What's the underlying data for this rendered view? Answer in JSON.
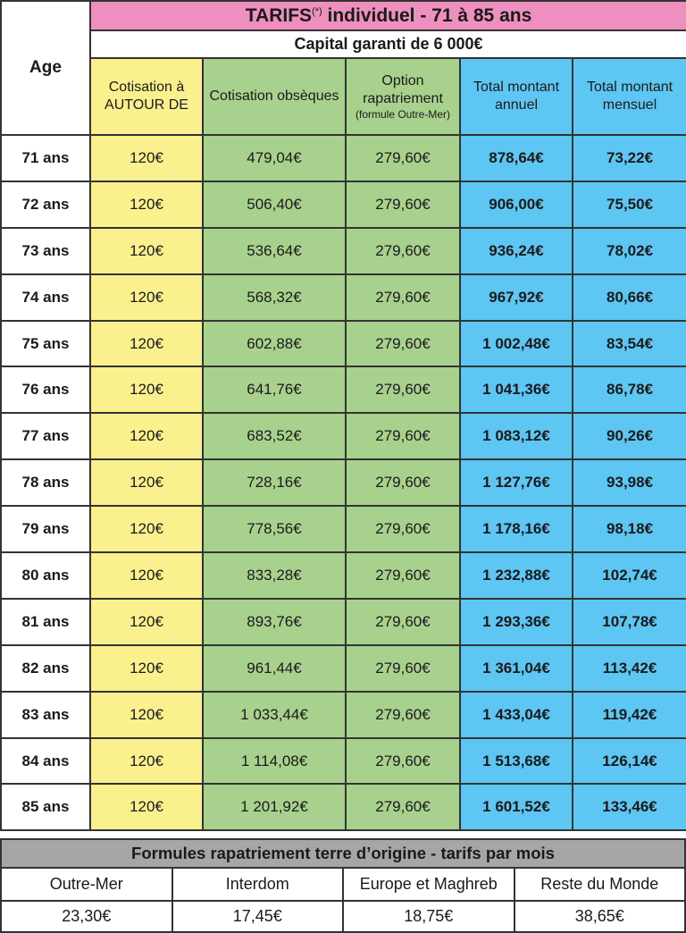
{
  "title": {
    "main": "TARIFS",
    "sup": "(*)",
    "rest": " individuel - 71 à 85 ans"
  },
  "capital": "Capital  garanti de 6 000€",
  "headers": {
    "age": "Age",
    "autour": "Cotisation à AUTOUR DE",
    "obseques": "Cotisation obsèques",
    "option": "Option rapatriement",
    "option_note": "(formule Outre-Mer)",
    "annuel": "Total montant annuel",
    "mensuel": "Total montant mensuel"
  },
  "colors": {
    "title": "#ef8fbf",
    "yellow": "#fbf08e",
    "green": "#a9d18e",
    "blue": "#5ec6f2",
    "gray": "#a6a6a6"
  },
  "rows": [
    [
      "71 ans",
      "120€",
      "479,04€",
      "279,60€",
      "878,64€",
      "73,22€"
    ],
    [
      "72 ans",
      "120€",
      "506,40€",
      "279,60€",
      "906,00€",
      "75,50€"
    ],
    [
      "73 ans",
      "120€",
      "536,64€",
      "279,60€",
      "936,24€",
      "78,02€"
    ],
    [
      "74 ans",
      "120€",
      "568,32€",
      "279,60€",
      "967,92€",
      "80,66€"
    ],
    [
      "75 ans",
      "120€",
      "602,88€",
      "279,60€",
      "1 002,48€",
      "83,54€"
    ],
    [
      "76 ans",
      "120€",
      "641,76€",
      "279,60€",
      "1 041,36€",
      "86,78€"
    ],
    [
      "77 ans",
      "120€",
      "683,52€",
      "279,60€",
      "1 083,12€",
      "90,26€"
    ],
    [
      "78 ans",
      "120€",
      "728,16€",
      "279,60€",
      "1 127,76€",
      "93,98€"
    ],
    [
      "79 ans",
      "120€",
      "778,56€",
      "279,60€",
      "1 178,16€",
      "98,18€"
    ],
    [
      "80 ans",
      "120€",
      "833,28€",
      "279,60€",
      "1 232,88€",
      "102,74€"
    ],
    [
      "81 ans",
      "120€",
      "893,76€",
      "279,60€",
      "1 293,36€",
      "107,78€"
    ],
    [
      "82 ans",
      "120€",
      "961,44€",
      "279,60€",
      "1 361,04€",
      "113,42€"
    ],
    [
      "83 ans",
      "120€",
      "1 033,44€",
      "279,60€",
      "1 433,04€",
      "119,42€"
    ],
    [
      "84 ans",
      "120€",
      "1 114,08€",
      "279,60€",
      "1 513,68€",
      "126,14€"
    ],
    [
      "85 ans",
      "120€",
      "1 201,92€",
      "279,60€",
      "1 601,52€",
      "133,46€"
    ]
  ],
  "formules": {
    "title": "Formules rapatriement terre d’origine - tarifs par mois",
    "labels": [
      "Outre-Mer",
      "Interdom",
      "Europe et Maghreb",
      "Reste du Monde"
    ],
    "values": [
      "23,30€",
      "17,45€",
      "18,75€",
      "38,65€"
    ]
  }
}
